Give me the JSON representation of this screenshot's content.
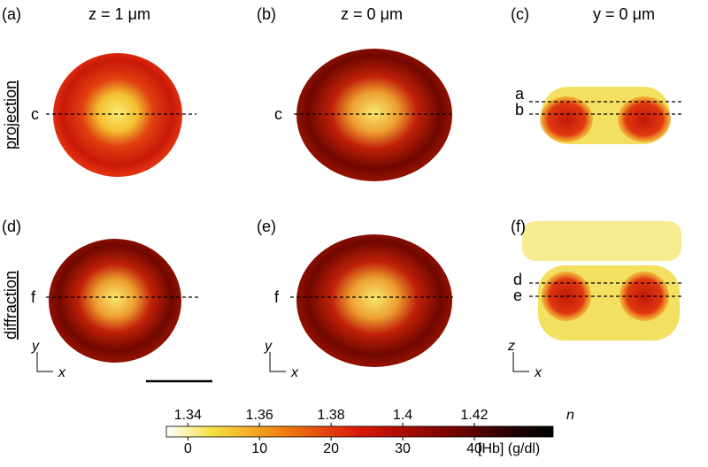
{
  "panels": [
    {
      "label": "(a)"
    },
    {
      "label": "(b)"
    },
    {
      "label": "(c)"
    },
    {
      "label": "(d)"
    },
    {
      "label": "(e)"
    },
    {
      "label": "(f)"
    }
  ],
  "columns": [
    "z = 1 μm",
    "z = 0 μm",
    "y = 0 μm"
  ],
  "rows": [
    "projection",
    "diffraction"
  ],
  "line_labels": {
    "a_panel": "c",
    "b_panel": "c",
    "c_upper": "a",
    "c_lower": "b",
    "d_panel": "f",
    "e_panel": "f",
    "f_upper": "d",
    "f_lower": "e"
  },
  "axes_icons": [
    {
      "vertical": "y",
      "horizontal": "x"
    },
    {
      "vertical": "y",
      "horizontal": "x"
    },
    {
      "vertical": "z",
      "horizontal": "x"
    }
  ],
  "colorbar": {
    "n_label": "n",
    "n_lim": [
      1.334,
      1.442
    ],
    "n_ticks": [
      1.34,
      1.36,
      1.38,
      1.4,
      1.42
    ],
    "hb_label": "[Hb] (g/dl)",
    "hb_lim": [
      -3,
      51
    ],
    "hb_ticks": [
      0,
      10,
      20,
      30,
      40
    ]
  }
}
